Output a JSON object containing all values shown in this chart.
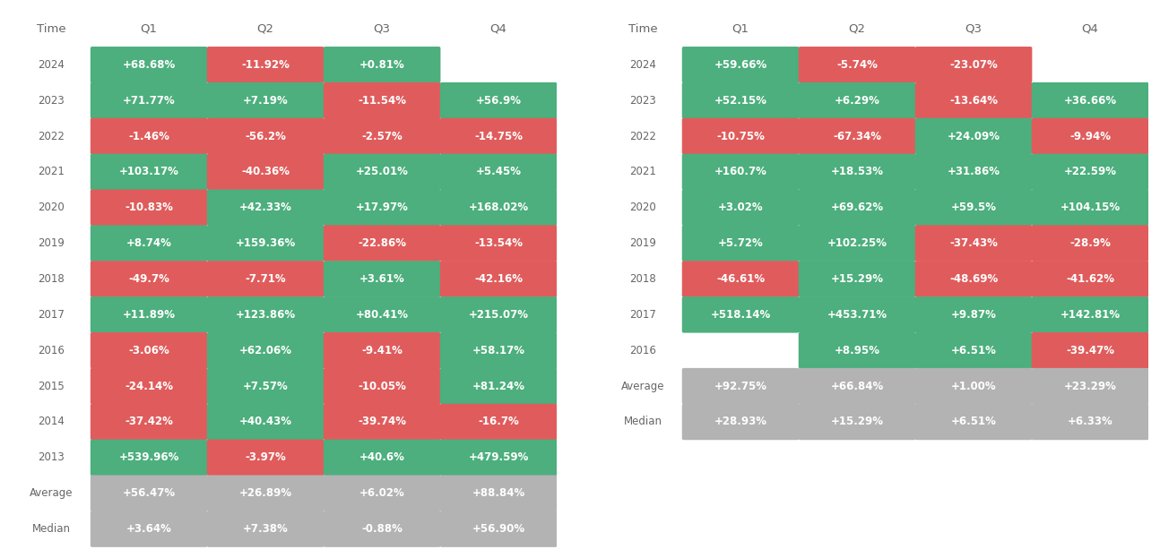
{
  "btc": {
    "rows": [
      "2024",
      "2023",
      "2022",
      "2021",
      "2020",
      "2019",
      "2018",
      "2017",
      "2016",
      "2015",
      "2014",
      "2013"
    ],
    "quarters": [
      "Q1",
      "Q2",
      "Q3",
      "Q4"
    ],
    "data": {
      "2024": [
        "+68.68%",
        "-11.92%",
        "+0.81%",
        null
      ],
      "2023": [
        "+71.77%",
        "+7.19%",
        "-11.54%",
        "+56.9%"
      ],
      "2022": [
        "-1.46%",
        "-56.2%",
        "-2.57%",
        "-14.75%"
      ],
      "2021": [
        "+103.17%",
        "-40.36%",
        "+25.01%",
        "+5.45%"
      ],
      "2020": [
        "-10.83%",
        "+42.33%",
        "+17.97%",
        "+168.02%"
      ],
      "2019": [
        "+8.74%",
        "+159.36%",
        "-22.86%",
        "-13.54%"
      ],
      "2018": [
        "-49.7%",
        "-7.71%",
        "+3.61%",
        "-42.16%"
      ],
      "2017": [
        "+11.89%",
        "+123.86%",
        "+80.41%",
        "+215.07%"
      ],
      "2016": [
        "-3.06%",
        "+62.06%",
        "-9.41%",
        "+58.17%"
      ],
      "2015": [
        "-24.14%",
        "+7.57%",
        "-10.05%",
        "+81.24%"
      ],
      "2014": [
        "-37.42%",
        "+40.43%",
        "-39.74%",
        "-16.7%"
      ],
      "2013": [
        "+539.96%",
        "-3.97%",
        "+40.6%",
        "+479.59%"
      ]
    },
    "average": [
      "+56.47%",
      "+26.89%",
      "+6.02%",
      "+88.84%"
    ],
    "median": [
      "+3.64%",
      "+7.38%",
      "-0.88%",
      "+56.90%"
    ]
  },
  "eth": {
    "rows": [
      "2024",
      "2023",
      "2022",
      "2021",
      "2020",
      "2019",
      "2018",
      "2017",
      "2016"
    ],
    "quarters": [
      "Q1",
      "Q2",
      "Q3",
      "Q4"
    ],
    "data": {
      "2024": [
        "+59.66%",
        "-5.74%",
        "-23.07%",
        null
      ],
      "2023": [
        "+52.15%",
        "+6.29%",
        "-13.64%",
        "+36.66%"
      ],
      "2022": [
        "-10.75%",
        "-67.34%",
        "+24.09%",
        "-9.94%"
      ],
      "2021": [
        "+160.7%",
        "+18.53%",
        "+31.86%",
        "+22.59%"
      ],
      "2020": [
        "+3.02%",
        "+69.62%",
        "+59.5%",
        "+104.15%"
      ],
      "2019": [
        "+5.72%",
        "+102.25%",
        "-37.43%",
        "-28.9%"
      ],
      "2018": [
        "-46.61%",
        "+15.29%",
        "-48.69%",
        "-41.62%"
      ],
      "2017": [
        "+518.14%",
        "+453.71%",
        "+9.87%",
        "+142.81%"
      ],
      "2016": [
        null,
        "+8.95%",
        "+6.51%",
        "-39.47%"
      ]
    },
    "average": [
      "+92.75%",
      "+66.84%",
      "+1.00%",
      "+23.29%"
    ],
    "median": [
      "+28.93%",
      "+15.29%",
      "+6.51%",
      "+6.33%"
    ]
  },
  "green_color": "#4caf7d",
  "red_color": "#e05c5c",
  "gray_color": "#b3b3b3",
  "bg_color": "#ffffff",
  "text_color": "#ffffff",
  "label_color": "#666666",
  "font_size": 8.5
}
